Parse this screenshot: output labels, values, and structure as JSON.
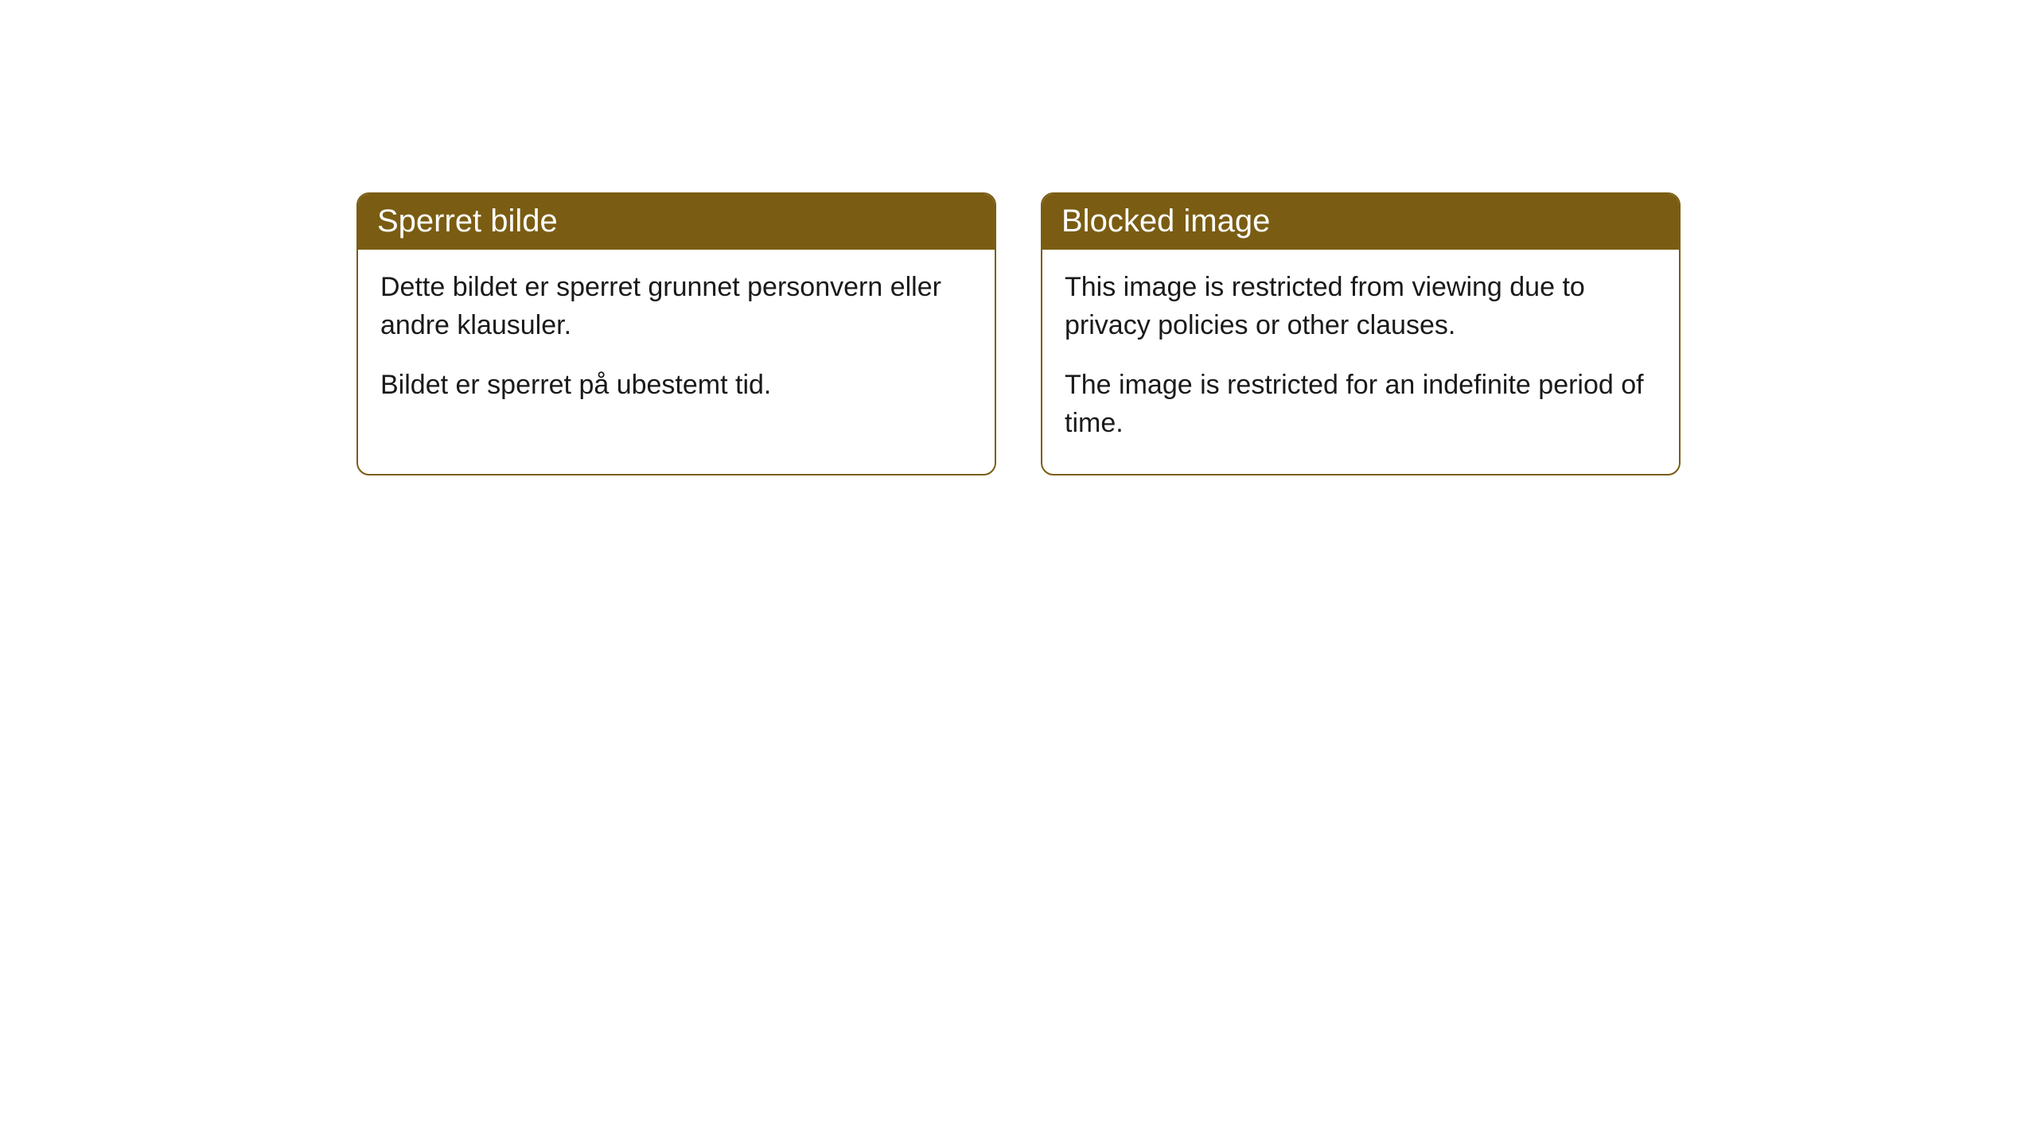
{
  "cards": [
    {
      "title": "Sperret bilde",
      "paragraph1": "Dette bildet er sperret grunnet personvern eller andre klausuler.",
      "paragraph2": "Bildet er sperret på ubestemt tid."
    },
    {
      "title": "Blocked image",
      "paragraph1": "This image is restricted from viewing due to privacy policies or other clauses.",
      "paragraph2": "The image is restricted for an indefinite period of time."
    }
  ],
  "style": {
    "header_bg": "#7a5d13",
    "header_text_color": "#ffffff",
    "border_color": "#7a5d13",
    "body_text_color": "#1a1a1a",
    "background_color": "#ffffff",
    "border_radius": 16,
    "title_fontsize": 40,
    "body_fontsize": 34
  }
}
